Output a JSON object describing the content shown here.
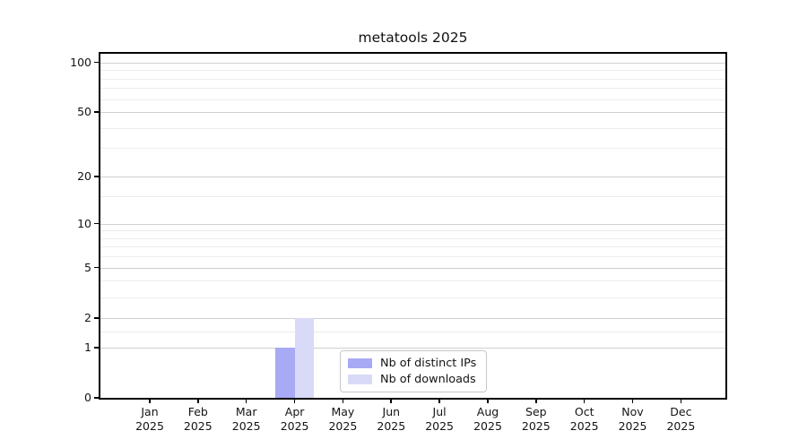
{
  "chart_data": {
    "type": "bar",
    "title": "metatools 2025",
    "categories": [
      "Jan",
      "Feb",
      "Mar",
      "Apr",
      "May",
      "Jun",
      "Jul",
      "Aug",
      "Sep",
      "Oct",
      "Nov",
      "Dec"
    ],
    "x_tick_second_line": "2025",
    "series": [
      {
        "name": "Nb of distinct IPs",
        "color": "#a8aaf5",
        "values": [
          0,
          0,
          0,
          1,
          0,
          0,
          0,
          0,
          0,
          0,
          0,
          0
        ]
      },
      {
        "name": "Nb of downloads",
        "color": "#d9daf8",
        "values": [
          0,
          0,
          0,
          2,
          0,
          0,
          0,
          0,
          0,
          0,
          0,
          0
        ]
      }
    ],
    "y_axis": {
      "scale": "log1p",
      "tick_values": [
        0,
        1,
        2,
        5,
        10,
        20,
        50,
        100
      ],
      "tick_labels": [
        "0",
        "1",
        "2",
        "5",
        "10",
        "20",
        "50",
        "100"
      ],
      "minor_tick_values": [
        1.5,
        3,
        4,
        6,
        7,
        8,
        9,
        15,
        30,
        40,
        60,
        70,
        80,
        90
      ],
      "range_max": 113
    },
    "legend": {
      "position": "lower center",
      "entries": [
        "Nb of distinct IPs",
        "Nb of downloads"
      ]
    },
    "grid": true,
    "colors": {
      "grid_major": "#cfcfcf",
      "grid_minor": "#ececec",
      "axis": "#000000",
      "text": "#141414",
      "background": "#ffffff"
    }
  }
}
